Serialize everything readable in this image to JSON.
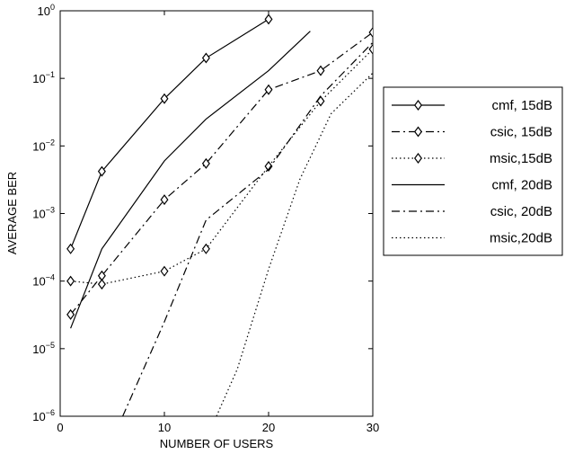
{
  "chart_data": {
    "type": "line",
    "title": "",
    "xlabel": "NUMBER OF USERS",
    "ylabel": "AVERAGE BER",
    "xlim": [
      0,
      30
    ],
    "ylim": [
      1e-06,
      1
    ],
    "yscale": "log",
    "grid": false,
    "legend_position": "right",
    "x_ticks": [
      {
        "value": 0,
        "label": "0"
      },
      {
        "value": 10,
        "label": "10"
      },
      {
        "value": 20,
        "label": "20"
      },
      {
        "value": 30,
        "label": "30"
      }
    ],
    "y_ticks": [
      {
        "value": 1e-06,
        "base": "10",
        "exp": "−6"
      },
      {
        "value": 1e-05,
        "base": "10",
        "exp": "−5"
      },
      {
        "value": 0.0001,
        "base": "10",
        "exp": "−4"
      },
      {
        "value": 0.001,
        "base": "10",
        "exp": "−3"
      },
      {
        "value": 0.01,
        "base": "10",
        "exp": "−2"
      },
      {
        "value": 0.1,
        "base": "10",
        "exp": "−1"
      },
      {
        "value": 1,
        "base": "10",
        "exp": "0"
      }
    ],
    "series": [
      {
        "name": "cmf, 15dB",
        "style": "solid",
        "marker": "diamond",
        "x": [
          1,
          4,
          10,
          14,
          20
        ],
        "y": [
          0.0003,
          0.0042,
          0.05,
          0.2,
          0.75
        ]
      },
      {
        "name": "csic, 15dB",
        "style": "dashdot",
        "marker": "diamond",
        "x": [
          1,
          4,
          10,
          14,
          20,
          25,
          30
        ],
        "y": [
          3.2e-05,
          0.00012,
          0.0016,
          0.0055,
          0.068,
          0.13,
          0.48
        ]
      },
      {
        "name": "msic,15dB",
        "style": "dotted",
        "marker": "diamond",
        "x": [
          1,
          4,
          10,
          14,
          20,
          25,
          30
        ],
        "y": [
          0.0001,
          9e-05,
          0.00014,
          0.0003,
          0.005,
          0.046,
          0.27
        ]
      },
      {
        "name": "cmf, 20dB",
        "style": "solid",
        "marker": "none",
        "x": [
          1,
          4,
          10,
          14,
          20,
          24
        ],
        "y": [
          2e-05,
          0.0003,
          0.006,
          0.025,
          0.13,
          0.5
        ]
      },
      {
        "name": "csic, 20dB",
        "style": "dashdot",
        "marker": "none",
        "x": [
          6,
          10,
          14,
          20,
          25,
          30
        ],
        "y": [
          1e-06,
          2.5e-05,
          0.0008,
          0.0045,
          0.055,
          0.34
        ]
      },
      {
        "name": "msic,20dB",
        "style": "dotted",
        "marker": "none",
        "x": [
          15,
          17,
          20,
          23,
          26,
          30
        ],
        "y": [
          1e-06,
          5e-06,
          0.00015,
          0.0032,
          0.03,
          0.12
        ]
      }
    ]
  }
}
